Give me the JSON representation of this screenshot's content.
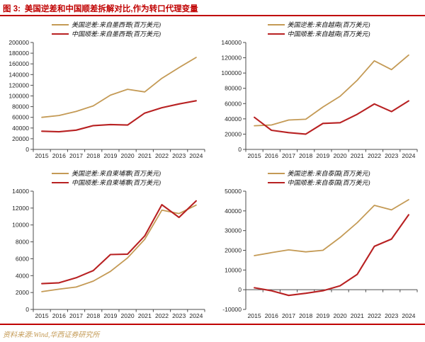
{
  "header": {
    "prefix": "图 3:",
    "title": "美国逆差和中国顺差拆解对比,作为转口代理变量"
  },
  "footer": {
    "source": "资料来源:Wind,华西证券研究所"
  },
  "colors": {
    "us": "#C49A55",
    "cn": "#B82122",
    "accent_red": "#C00000",
    "axis": "#4d4d4d"
  },
  "chart_data": [
    {
      "type": "line",
      "position": "top-left",
      "title": "",
      "xlabel": "",
      "ylabel": "",
      "grid": false,
      "legend_position": "top",
      "x": [
        2015,
        2016,
        2017,
        2018,
        2019,
        2020,
        2021,
        2022,
        2023,
        2024
      ],
      "ylim": [
        0,
        200000
      ],
      "ystep": 20000,
      "series": [
        {
          "name": "美国逆差:来自墨西哥(百万美元)",
          "color_key": "us",
          "values": [
            60000,
            63500,
            71000,
            81500,
            101500,
            112500,
            107500,
            133000,
            153000,
            172000
          ]
        },
        {
          "name": "中国顺差:来自墨西哥(百万美元)",
          "color_key": "cn",
          "values": [
            34000,
            33000,
            36000,
            44500,
            46500,
            45500,
            68000,
            78000,
            85000,
            91000
          ]
        }
      ]
    },
    {
      "type": "line",
      "position": "top-right",
      "title": "",
      "xlabel": "",
      "ylabel": "",
      "grid": false,
      "legend_position": "top",
      "x": [
        2015,
        2016,
        2017,
        2018,
        2019,
        2020,
        2021,
        2022,
        2023,
        2024
      ],
      "ylim": [
        0,
        140000
      ],
      "ystep": 20000,
      "series": [
        {
          "name": "美国逆差:来自越南(百万美元)",
          "color_key": "us",
          "values": [
            31000,
            32000,
            38500,
            39500,
            55500,
            69500,
            90500,
            116000,
            104500,
            123500
          ]
        },
        {
          "name": "中国顺差:来自越南(百万美元)",
          "color_key": "cn",
          "values": [
            42000,
            25000,
            22000,
            20000,
            34000,
            35000,
            46000,
            59500,
            49500,
            63500
          ]
        }
      ]
    },
    {
      "type": "line",
      "position": "bottom-left",
      "title": "",
      "xlabel": "",
      "ylabel": "",
      "grid": false,
      "legend_position": "top",
      "x": [
        2015,
        2016,
        2017,
        2018,
        2019,
        2020,
        2021,
        2022,
        2023,
        2024
      ],
      "ylim": [
        0,
        14000
      ],
      "ystep": 2000,
      "series": [
        {
          "name": "美国逆差:来自柬埔寨(百万美元)",
          "color_key": "us",
          "values": [
            2100,
            2400,
            2650,
            3350,
            4500,
            6100,
            8300,
            11750,
            11350,
            12350
          ]
        },
        {
          "name": "中国顺差:来自柬埔寨(百万美元)",
          "color_key": "cn",
          "values": [
            3050,
            3150,
            3750,
            4600,
            6500,
            6550,
            8700,
            12400,
            10900,
            12850
          ]
        }
      ]
    },
    {
      "type": "line",
      "position": "bottom-right",
      "title": "",
      "xlabel": "",
      "ylabel": "",
      "grid": false,
      "legend_position": "top",
      "x": [
        2015,
        2016,
        2017,
        2018,
        2019,
        2020,
        2021,
        2022,
        2023,
        2024
      ],
      "ylim": [
        -10000,
        50000
      ],
      "ystep": 10000,
      "series": [
        {
          "name": "美国逆差:来自泰国(百万美元)",
          "color_key": "us",
          "values": [
            17300,
            18800,
            20200,
            19200,
            20000,
            26500,
            34000,
            42800,
            40500,
            45700
          ]
        },
        {
          "name": "中国顺差:来自泰国(百万美元)",
          "color_key": "cn",
          "values": [
            1000,
            -500,
            -2900,
            -1800,
            -500,
            2000,
            7800,
            22000,
            25700,
            38000
          ]
        }
      ]
    }
  ]
}
